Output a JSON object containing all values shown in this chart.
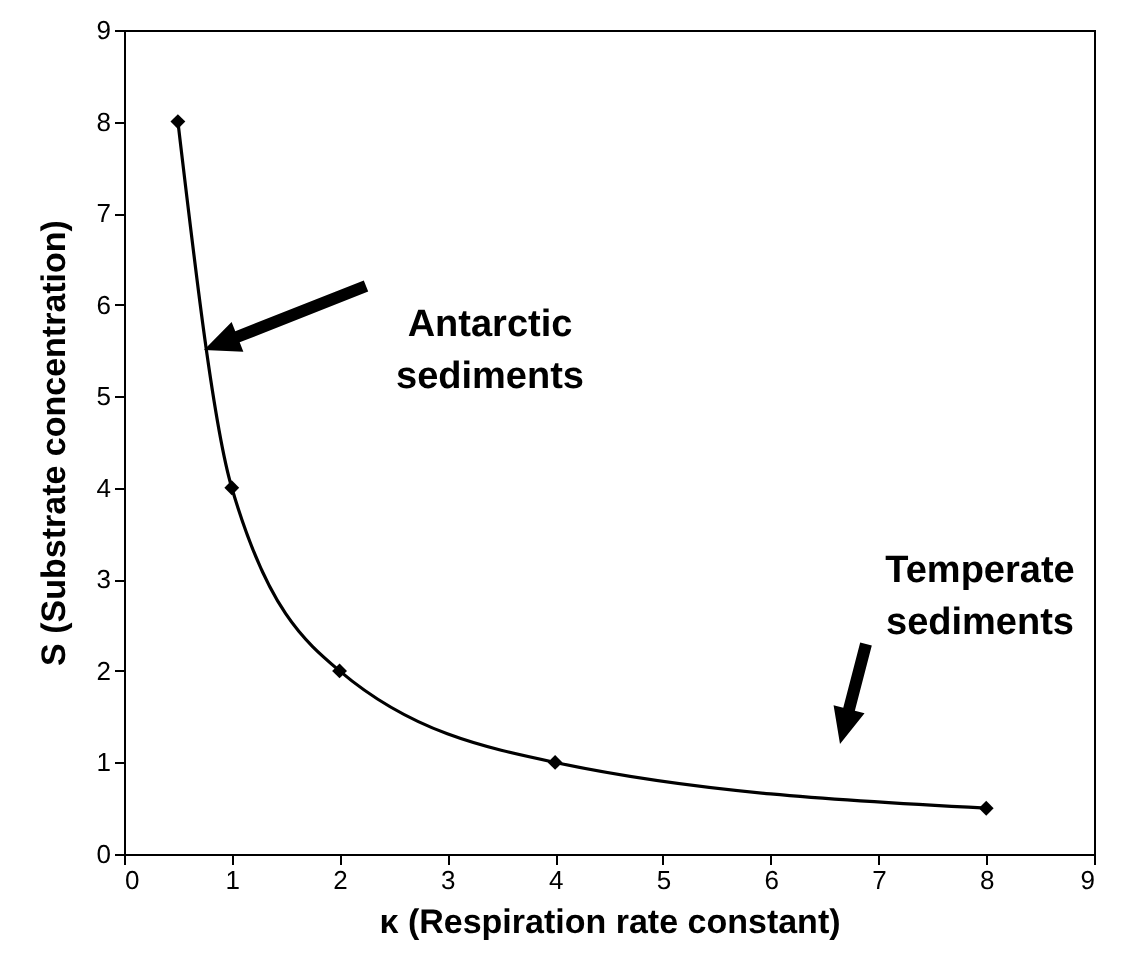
{
  "chart_data": {
    "type": "line",
    "xlabel": "κ (Respiration rate constant)",
    "ylabel": "S (Substrate concentration)",
    "x": [
      0.5,
      1,
      2,
      4,
      8
    ],
    "series": [
      {
        "color": "#000000",
        "values": [
          8,
          4,
          2,
          1,
          0.5
        ]
      }
    ],
    "xlim": [
      0,
      9
    ],
    "ylim": [
      0,
      9
    ],
    "xticks": [
      0,
      1,
      2,
      3,
      4,
      5,
      6,
      7,
      8,
      9
    ],
    "yticks": [
      0,
      1,
      2,
      3,
      4,
      5,
      6,
      7,
      8,
      9
    ],
    "marker": "diamond",
    "line_style": "solid",
    "annotations": [
      "Antarctic sediments",
      "Temperate sediments"
    ]
  }
}
